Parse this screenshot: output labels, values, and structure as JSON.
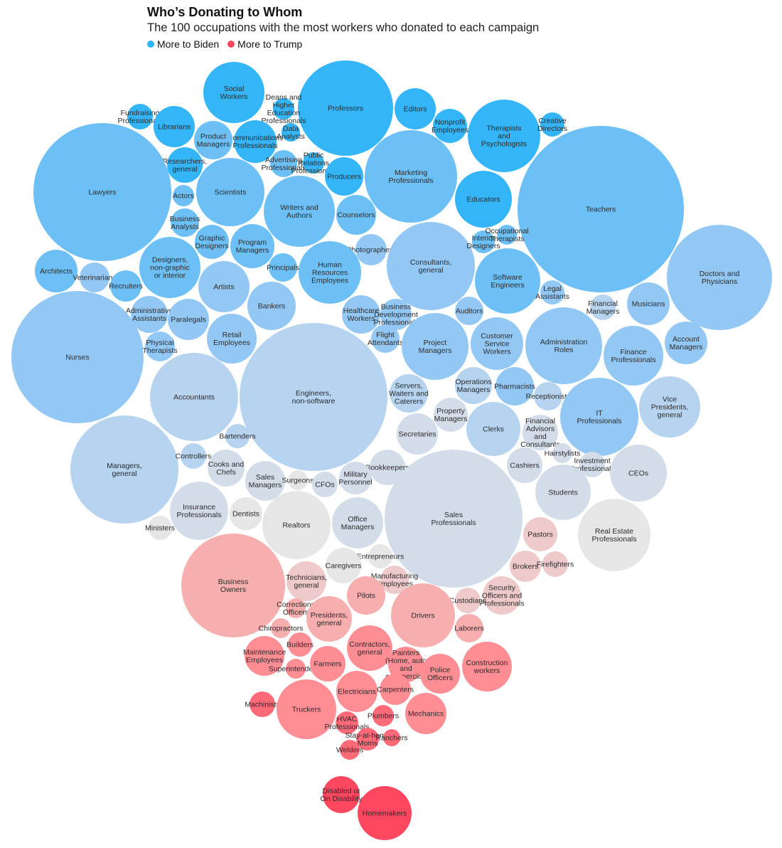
{
  "chart_data": {
    "type": "bubble",
    "title": "Who’s Donating to Whom",
    "subtitle": "The 100 occupations with the most workers who donated to each campaign",
    "legend": [
      {
        "label": "More to Biden",
        "color": "#2fb2f7"
      },
      {
        "label": "More to Trump",
        "color": "#ff4860"
      }
    ],
    "legend_placement": "top-left",
    "lean_colors": {
      "b3": "#34b5f7",
      "b2": "#6dc0f6",
      "b1": "#93c8f5",
      "b0": "#b6d3f0",
      "n0": "#d3ddea",
      "g": "#e6e6e6",
      "r0": "#efcaca",
      "r1": "#f7aeae",
      "r2": "#ff8e94",
      "r3": "#ff6a78",
      "r4": "#ff4860"
    },
    "bubbles": [
      {
        "label": "Social\nWorkers",
        "lean": "b3"
      },
      {
        "label": "Professors",
        "lean": "b3"
      },
      {
        "label": "Editors",
        "lean": "b3"
      },
      {
        "label": "Nonprofit\nEmployees",
        "lean": "b3"
      },
      {
        "label": "Therapists\nand\nPsychologists",
        "lean": "b3"
      },
      {
        "label": "Creative\nDirectors",
        "lean": "b3"
      },
      {
        "label": "Fundraising\nProfessionals",
        "lean": "b3"
      },
      {
        "label": "Librarians",
        "lean": "b3"
      },
      {
        "label": "Deans and\nHigher\nEducation\nProfessionals",
        "lean": "b3"
      },
      {
        "label": "Data\nAnalysts",
        "lean": "b3"
      },
      {
        "label": "Communications\nProfessionals",
        "lean": "b3"
      },
      {
        "label": "Product\nManagers",
        "lean": "b2"
      },
      {
        "label": "Researchers,\ngeneral",
        "lean": "b3"
      },
      {
        "label": "Advertising\nProfessionals",
        "lean": "b2"
      },
      {
        "label": "Public\nRelations\nProfessionals",
        "lean": "b3"
      },
      {
        "label": "Producers",
        "lean": "b3"
      },
      {
        "label": "Marketing\nProfessionals",
        "lean": "b2"
      },
      {
        "label": "Educators",
        "lean": "b3"
      },
      {
        "label": "Lawyers",
        "lean": "b2"
      },
      {
        "label": "Teachers",
        "lean": "b2"
      },
      {
        "label": "Actors",
        "lean": "b2"
      },
      {
        "label": "Scientists",
        "lean": "b2"
      },
      {
        "label": "Writers and\nAuthors",
        "lean": "b2"
      },
      {
        "label": "Counselors",
        "lean": "b2"
      },
      {
        "label": "Business\nAnalysts",
        "lean": "b2"
      },
      {
        "label": "Graphic\nDesigners",
        "lean": "b2"
      },
      {
        "label": "Program\nManagers",
        "lean": "b2"
      },
      {
        "label": "Photographers",
        "lean": "b1"
      },
      {
        "label": "Consultants,\ngeneral",
        "lean": "b1"
      },
      {
        "label": "Interior\nDesigners",
        "lean": "b2"
      },
      {
        "label": "Occupational\nTherapists",
        "lean": "b2"
      },
      {
        "label": "Software\nEngineers",
        "lean": "b2"
      },
      {
        "label": "Doctors and\nPhysicians",
        "lean": "b1"
      },
      {
        "label": "Architects",
        "lean": "b2"
      },
      {
        "label": "Veterinarians",
        "lean": "b1"
      },
      {
        "label": "Designers,\nnon-graphic\nor interior",
        "lean": "b2"
      },
      {
        "label": "Recruiters",
        "lean": "b2"
      },
      {
        "label": "Principals",
        "lean": "b2"
      },
      {
        "label": "Human\nResources\nEmployees",
        "lean": "b2"
      },
      {
        "label": "Artists",
        "lean": "b1"
      },
      {
        "label": "Legal\nAssistants",
        "lean": "b1"
      },
      {
        "label": "Financial\nManagers",
        "lean": "b0"
      },
      {
        "label": "Musicians",
        "lean": "b1"
      },
      {
        "label": "Bankers",
        "lean": "b1"
      },
      {
        "label": "Administrative\nAssistants",
        "lean": "b1"
      },
      {
        "label": "Paralegals",
        "lean": "b1"
      },
      {
        "label": "Healthcare\nWorkers",
        "lean": "b1"
      },
      {
        "label": "Business\nDevelopment\nProfessionals",
        "lean": "b1"
      },
      {
        "label": "Auditors",
        "lean": "b1"
      },
      {
        "label": "Nurses",
        "lean": "b1"
      },
      {
        "label": "Physical\nTherapists",
        "lean": "b1"
      },
      {
        "label": "Retail\nEmployees",
        "lean": "b1"
      },
      {
        "label": "Flight\nAttendants",
        "lean": "b1"
      },
      {
        "label": "Project\nManagers",
        "lean": "b1"
      },
      {
        "label": "Customer\nService\nWorkers",
        "lean": "b1"
      },
      {
        "label": "Administration\nRoles",
        "lean": "b1"
      },
      {
        "label": "Finance\nProfessionals",
        "lean": "b1"
      },
      {
        "label": "Account\nManagers",
        "lean": "b1"
      },
      {
        "label": "Accountants",
        "lean": "b0"
      },
      {
        "label": "Engineers,\nnon-software",
        "lean": "b0"
      },
      {
        "label": "Servers,\nWaiters and\nCaterers",
        "lean": "b0"
      },
      {
        "label": "Operations\nManagers",
        "lean": "b0"
      },
      {
        "label": "Pharmacists",
        "lean": "b1"
      },
      {
        "label": "Receptionists",
        "lean": "b0"
      },
      {
        "label": "Vice\nPresidents,\ngeneral",
        "lean": "b0"
      },
      {
        "label": "IT\nProfessionals",
        "lean": "b1"
      },
      {
        "label": "Property\nManagers",
        "lean": "n0"
      },
      {
        "label": "Secretaries",
        "lean": "n0"
      },
      {
        "label": "Clerks",
        "lean": "b0"
      },
      {
        "label": "Financial\nAdvisors\nand\nConsultants",
        "lean": "n0"
      },
      {
        "label": "Bartenders",
        "lean": "b0"
      },
      {
        "label": "Managers,\ngeneral",
        "lean": "b0"
      },
      {
        "label": "Controllers",
        "lean": "b0"
      },
      {
        "label": "Cooks and\nChefs",
        "lean": "n0"
      },
      {
        "label": "Hairstylists",
        "lean": "n0"
      },
      {
        "label": "Investment\nProfessionals",
        "lean": "n0"
      },
      {
        "label": "Bookkeepers",
        "lean": "n0"
      },
      {
        "label": "Cashiers",
        "lean": "n0"
      },
      {
        "label": "CEOs",
        "lean": "n0"
      },
      {
        "label": "Sales\nManagers",
        "lean": "n0"
      },
      {
        "label": "Surgeons",
        "lean": "g"
      },
      {
        "label": "CFOs",
        "lean": "n0"
      },
      {
        "label": "Military\nPersonnel",
        "lean": "n0"
      },
      {
        "label": "Students",
        "lean": "n0"
      },
      {
        "label": "Insurance\nProfessionals",
        "lean": "n0"
      },
      {
        "label": "Dentists",
        "lean": "g"
      },
      {
        "label": "Ministers",
        "lean": "g"
      },
      {
        "label": "Realtors",
        "lean": "g"
      },
      {
        "label": "Office\nManagers",
        "lean": "n0"
      },
      {
        "label": "Sales\nProfessionals",
        "lean": "n0"
      },
      {
        "label": "Real Estate\nProfessionals",
        "lean": "g"
      },
      {
        "label": "Pastors",
        "lean": "r0"
      },
      {
        "label": "Entrepreneurs",
        "lean": "g"
      },
      {
        "label": "Caregivers",
        "lean": "g"
      },
      {
        "label": "Brokers",
        "lean": "r0"
      },
      {
        "label": "Firefighters",
        "lean": "r0"
      },
      {
        "label": "Business\nOwners",
        "lean": "r1"
      },
      {
        "label": "Technicians,\ngeneral",
        "lean": "r0"
      },
      {
        "label": "Manufacturing\nEmployees",
        "lean": "r0"
      },
      {
        "label": "Security\nOfficers and\nProfessionals",
        "lean": "r0"
      },
      {
        "label": "Pilots",
        "lean": "r1"
      },
      {
        "label": "Custodians",
        "lean": "r0"
      },
      {
        "label": "Corrections\nOfficers",
        "lean": "r1"
      },
      {
        "label": "Presidents,\ngeneral",
        "lean": "r1"
      },
      {
        "label": "Drivers",
        "lean": "r1"
      },
      {
        "label": "Laborers",
        "lean": "r1"
      },
      {
        "label": "Chiropractors",
        "lean": "r1"
      },
      {
        "label": "Builders",
        "lean": "r2"
      },
      {
        "label": "Maintenance\nEmployees",
        "lean": "r2"
      },
      {
        "label": "Contractors,\ngeneral",
        "lean": "r2"
      },
      {
        "label": "Superintendents",
        "lean": "r2"
      },
      {
        "label": "Farmers",
        "lean": "r2"
      },
      {
        "label": "Painters\n(Home, auto\nand\ncommercial)",
        "lean": "r2"
      },
      {
        "label": "Police\nOfficers",
        "lean": "r2"
      },
      {
        "label": "Construction\nworkers",
        "lean": "r2"
      },
      {
        "label": "Electricians",
        "lean": "r2"
      },
      {
        "label": "Carpenters",
        "lean": "r2"
      },
      {
        "label": "Machinists",
        "lean": "r3"
      },
      {
        "label": "Truckers",
        "lean": "r2"
      },
      {
        "label": "Plumbers",
        "lean": "r3"
      },
      {
        "label": "Mechanics",
        "lean": "r2"
      },
      {
        "label": "HVAC\nProfessionals",
        "lean": "r3"
      },
      {
        "label": "Stay-at-home\nMoms",
        "lean": "r3"
      },
      {
        "label": "Ranchers",
        "lean": "r3"
      },
      {
        "label": "Welders",
        "lean": "r3"
      },
      {
        "label": "Disabled or\nOn Disability",
        "lean": "r4"
      },
      {
        "label": "Homemakers",
        "lean": "r4"
      }
    ]
  }
}
